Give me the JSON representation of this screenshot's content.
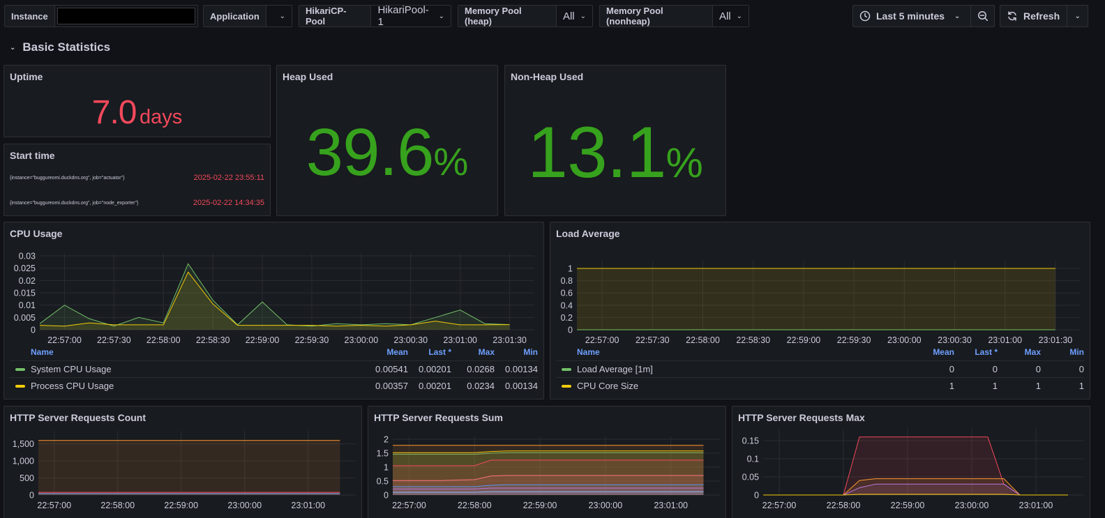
{
  "variables": {
    "instance": {
      "label": "Instance",
      "value": ""
    },
    "application": {
      "label": "Application",
      "value": ""
    },
    "hikari": {
      "label": "HikariCP-Pool",
      "value": "HikariPool-1"
    },
    "heap_pool": {
      "label": "Memory Pool (heap)",
      "value": "All"
    },
    "nonheap_pool": {
      "label": "Memory Pool (nonheap)",
      "value": "All"
    }
  },
  "time_picker": {
    "label": "Last 5 minutes",
    "icon": "clock-icon"
  },
  "refresh": {
    "label": "Refresh",
    "icon": "refresh-icon"
  },
  "row": {
    "title": "Basic Statistics"
  },
  "colors": {
    "red": "#f2495c",
    "green": "#37a21d",
    "yellow": "#f2cc0c",
    "lightgreen": "#73bf69",
    "blue": "#6e9fff",
    "orange": "#ff9830"
  },
  "uptime": {
    "title": "Uptime",
    "value": "7.0",
    "unit": "days"
  },
  "start_time": {
    "title": "Start time",
    "rows": [
      {
        "key": "{instance=\"buggureomi.duckdns.org\", job=\"actuator\"}",
        "value": "2025-02-22 23:55:11"
      },
      {
        "key": "{instance=\"buggureomi.duckdns.org\", job=\"node_exporter\"}",
        "value": "2025-02-22 14:34:35"
      }
    ]
  },
  "heap": {
    "title": "Heap Used",
    "value": "39.6",
    "unit": "%"
  },
  "nonheap": {
    "title": "Non-Heap Used",
    "value": "13.1",
    "unit": "%"
  },
  "cpu": {
    "title": "CPU Usage",
    "legend_headers": {
      "name": "Name",
      "mean": "Mean",
      "last": "Last *",
      "max": "Max",
      "min": "Min"
    },
    "legend": [
      {
        "name": "System CPU Usage",
        "color": "#73bf69",
        "mean": "0.00541",
        "last": "0.00201",
        "max": "0.0268",
        "min": "0.00134"
      },
      {
        "name": "Process CPU Usage",
        "color": "#f2cc0c",
        "mean": "0.00357",
        "last": "0.00201",
        "max": "0.0234",
        "min": "0.00134"
      }
    ]
  },
  "load": {
    "title": "Load Average",
    "legend_headers": {
      "name": "Name",
      "mean": "Mean",
      "last": "Last *",
      "max": "Max",
      "min": "Min"
    },
    "legend": [
      {
        "name": "Load Average [1m]",
        "color": "#73bf69",
        "mean": "0",
        "last": "0",
        "max": "0",
        "min": "0"
      },
      {
        "name": "CPU Core Size",
        "color": "#f2cc0c",
        "mean": "1",
        "last": "1",
        "max": "1",
        "min": "1"
      }
    ]
  },
  "http_count": {
    "title": "HTTP Server Requests Count"
  },
  "http_sum": {
    "title": "HTTP Server Requests Sum"
  },
  "http_max": {
    "title": "HTTP Server Requests Max"
  },
  "chart_data": [
    {
      "id": "cpu",
      "type": "line",
      "title": "CPU Usage",
      "x": [
        "22:56:45",
        "22:57:00",
        "22:57:15",
        "22:57:30",
        "22:57:45",
        "22:58:00",
        "22:58:15",
        "22:58:30",
        "22:58:45",
        "22:59:00",
        "22:59:15",
        "22:59:30",
        "22:59:45",
        "23:00:00",
        "23:00:15",
        "23:00:30",
        "23:00:45",
        "23:01:00",
        "23:01:15",
        "23:01:30"
      ],
      "xticks": [
        "22:57:00",
        "22:57:30",
        "22:58:00",
        "22:58:30",
        "22:59:00",
        "22:59:30",
        "23:00:00",
        "23:00:30",
        "23:01:00",
        "23:01:30"
      ],
      "yticks": [
        0,
        0.005,
        0.01,
        0.015,
        0.02,
        0.025,
        0.03
      ],
      "ylim": [
        0,
        0.03
      ],
      "series": [
        {
          "name": "System CPU Usage",
          "color": "#73bf69",
          "values": [
            0.0025,
            0.01,
            0.0045,
            0.0015,
            0.005,
            0.0028,
            0.0268,
            0.012,
            0.002,
            0.0113,
            0.002,
            0.0015,
            0.0025,
            0.002,
            0.0025,
            0.002,
            0.005,
            0.008,
            0.0025,
            0.0021
          ]
        },
        {
          "name": "Process CPU Usage",
          "color": "#f2cc0c",
          "values": [
            0.0018,
            0.0015,
            0.0028,
            0.002,
            0.002,
            0.002,
            0.0234,
            0.0105,
            0.0018,
            0.0018,
            0.0018,
            0.0018,
            0.0015,
            0.0018,
            0.0015,
            0.002,
            0.0035,
            0.002,
            0.002,
            0.0021
          ]
        }
      ]
    },
    {
      "id": "load",
      "type": "line",
      "title": "Load Average",
      "x": [
        "22:56:45",
        "22:57:00",
        "22:57:30",
        "22:58:00",
        "22:58:30",
        "22:59:00",
        "22:59:30",
        "23:00:00",
        "23:00:30",
        "23:01:00",
        "23:01:30"
      ],
      "xticks": [
        "22:57:00",
        "22:57:30",
        "22:58:00",
        "22:58:30",
        "22:59:00",
        "22:59:30",
        "23:00:00",
        "23:00:30",
        "23:01:00",
        "23:01:30"
      ],
      "yticks": [
        0,
        0.2,
        0.4,
        0.6,
        0.8,
        1
      ],
      "ylim": [
        0,
        1.08
      ],
      "series": [
        {
          "name": "Load Average [1m]",
          "color": "#73bf69",
          "values": [
            0,
            0,
            0,
            0,
            0,
            0,
            0,
            0,
            0,
            0,
            0
          ]
        },
        {
          "name": "CPU Core Size",
          "color": "#f2cc0c",
          "values": [
            1,
            1,
            1,
            1,
            1,
            1,
            1,
            1,
            1,
            1,
            1
          ]
        }
      ]
    },
    {
      "id": "hcount",
      "type": "area",
      "title": "HTTP Server Requests Count",
      "x": [
        "22:56:45",
        "22:57:30",
        "22:58:00",
        "22:58:30",
        "22:59:00",
        "22:59:30",
        "23:00:00",
        "23:00:30",
        "23:01:00",
        "23:01:30"
      ],
      "xticks": [
        "22:57:00",
        "22:58:00",
        "22:59:00",
        "23:00:00",
        "23:01:00"
      ],
      "yticks": [
        0,
        500,
        1000,
        1500
      ],
      "ytick_labels": [
        "0",
        "500",
        "1,000",
        "1,500"
      ],
      "ylim": [
        0,
        1800
      ],
      "series": [
        {
          "name": "",
          "color": "#ff9830",
          "values": [
            1600,
            1600,
            1600,
            1600,
            1600,
            1600,
            1600,
            1600,
            1600,
            1600
          ]
        },
        {
          "name": "",
          "color": "#f2495c",
          "values": [
            80,
            80,
            80,
            80,
            80,
            80,
            80,
            80,
            80,
            80
          ]
        },
        {
          "name": "",
          "color": "#8ab8ff",
          "values": [
            40,
            40,
            40,
            40,
            40,
            40,
            40,
            40,
            40,
            40
          ]
        }
      ]
    },
    {
      "id": "hsum",
      "type": "area",
      "title": "HTTP Server Requests Sum",
      "x": [
        "22:56:45",
        "22:57:30",
        "22:58:00",
        "22:58:15",
        "22:58:30",
        "22:59:00",
        "22:59:30",
        "23:00:00",
        "23:00:30",
        "23:01:00",
        "23:01:30"
      ],
      "xticks": [
        "22:57:00",
        "22:58:00",
        "22:59:00",
        "23:00:00",
        "23:01:00"
      ],
      "yticks": [
        0,
        0.5,
        1,
        1.5,
        2
      ],
      "ylim": [
        0,
        2
      ],
      "series": [
        {
          "name": "",
          "color": "#f2cc0c",
          "values": [
            1.52,
            1.52,
            1.52,
            1.56,
            1.58,
            1.58,
            1.58,
            1.58,
            1.58,
            1.58,
            1.58
          ]
        },
        {
          "name": "",
          "color": "#73bf69",
          "values": [
            1.46,
            1.46,
            1.46,
            1.5,
            1.52,
            1.52,
            1.52,
            1.52,
            1.52,
            1.52,
            1.52
          ]
        },
        {
          "name": "",
          "color": "#ff9830",
          "values": [
            1.78,
            1.78,
            1.78,
            1.78,
            1.78,
            1.78,
            1.78,
            1.78,
            1.78,
            1.78,
            1.78
          ]
        },
        {
          "name": "",
          "color": "#f2495c",
          "values": [
            1.05,
            1.05,
            1.05,
            1.25,
            1.25,
            1.25,
            1.25,
            1.25,
            1.25,
            1.25,
            1.25
          ]
        },
        {
          "name": "",
          "color": "#ff7383",
          "values": [
            0.52,
            0.52,
            0.55,
            0.68,
            0.7,
            0.7,
            0.7,
            0.7,
            0.7,
            0.7,
            0.7
          ]
        },
        {
          "name": "",
          "color": "#5794f2",
          "values": [
            0.3,
            0.3,
            0.3,
            0.35,
            0.37,
            0.37,
            0.37,
            0.37,
            0.37,
            0.37,
            0.37
          ]
        },
        {
          "name": "",
          "color": "#b877d9",
          "values": [
            0.22,
            0.22,
            0.22,
            0.25,
            0.25,
            0.25,
            0.25,
            0.25,
            0.25,
            0.25,
            0.25
          ]
        },
        {
          "name": "",
          "color": "#8ab8ff",
          "values": [
            0.1,
            0.1,
            0.1,
            0.12,
            0.12,
            0.12,
            0.12,
            0.12,
            0.12,
            0.12,
            0.12
          ]
        }
      ]
    },
    {
      "id": "hmax",
      "type": "area",
      "title": "HTTP Server Requests Max",
      "x": [
        "22:56:45",
        "22:57:30",
        "22:58:00",
        "22:58:15",
        "22:58:30",
        "22:59:00",
        "22:59:30",
        "23:00:00",
        "23:00:15",
        "23:00:30",
        "23:00:45",
        "23:01:00",
        "23:01:30"
      ],
      "xticks": [
        "22:57:00",
        "22:58:00",
        "22:59:00",
        "23:00:00",
        "23:01:00"
      ],
      "yticks": [
        0,
        0.05,
        0.1,
        0.15
      ],
      "ylim": [
        0,
        0.175
      ],
      "series": [
        {
          "name": "",
          "color": "#f2495c",
          "values": [
            0,
            0,
            0,
            0.16,
            0.16,
            0.16,
            0.16,
            0.16,
            0.16,
            0.03,
            0,
            0,
            0
          ]
        },
        {
          "name": "",
          "color": "#ff9830",
          "values": [
            0,
            0,
            0,
            0.04,
            0.045,
            0.045,
            0.045,
            0.045,
            0.045,
            0.045,
            0,
            0,
            0
          ]
        },
        {
          "name": "",
          "color": "#b877d9",
          "values": [
            0,
            0,
            0,
            0.02,
            0.03,
            0.03,
            0.03,
            0.03,
            0.03,
            0.03,
            0,
            0,
            0
          ]
        },
        {
          "name": "",
          "color": "#f2cc0c",
          "values": [
            0,
            0,
            0,
            0.002,
            0.002,
            0.002,
            0.002,
            0.002,
            0.002,
            0.002,
            0,
            0,
            0
          ]
        }
      ]
    }
  ]
}
